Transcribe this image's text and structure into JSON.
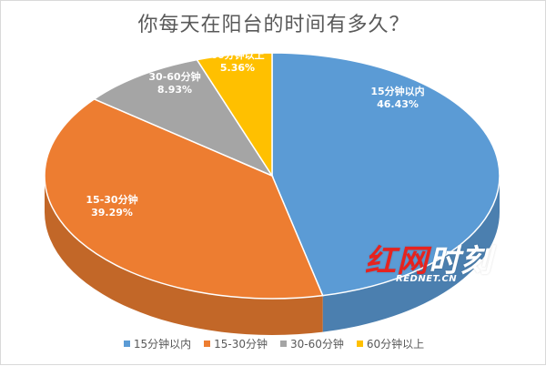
{
  "chart_data": {
    "type": "pie",
    "title": "你每天在阳台的时间有多久？",
    "slices": [
      {
        "name": "15分钟以内",
        "value": 46.43,
        "label": "46.43%",
        "color": "#5b9bd5"
      },
      {
        "name": "15-30分钟",
        "value": 39.29,
        "label": "39.29%",
        "color": "#ed7d31"
      },
      {
        "name": "30-60分钟",
        "value": 8.93,
        "label": "8.93%",
        "color": "#a5a5a5"
      },
      {
        "name": "60分钟以上",
        "value": 5.36,
        "label": "5.36%",
        "color": "#ffc000"
      }
    ],
    "legend": {
      "position": "bottom"
    }
  },
  "watermark": {
    "main_red": "红网",
    "main_white": "时刻",
    "sub": "REDNET.CN"
  }
}
